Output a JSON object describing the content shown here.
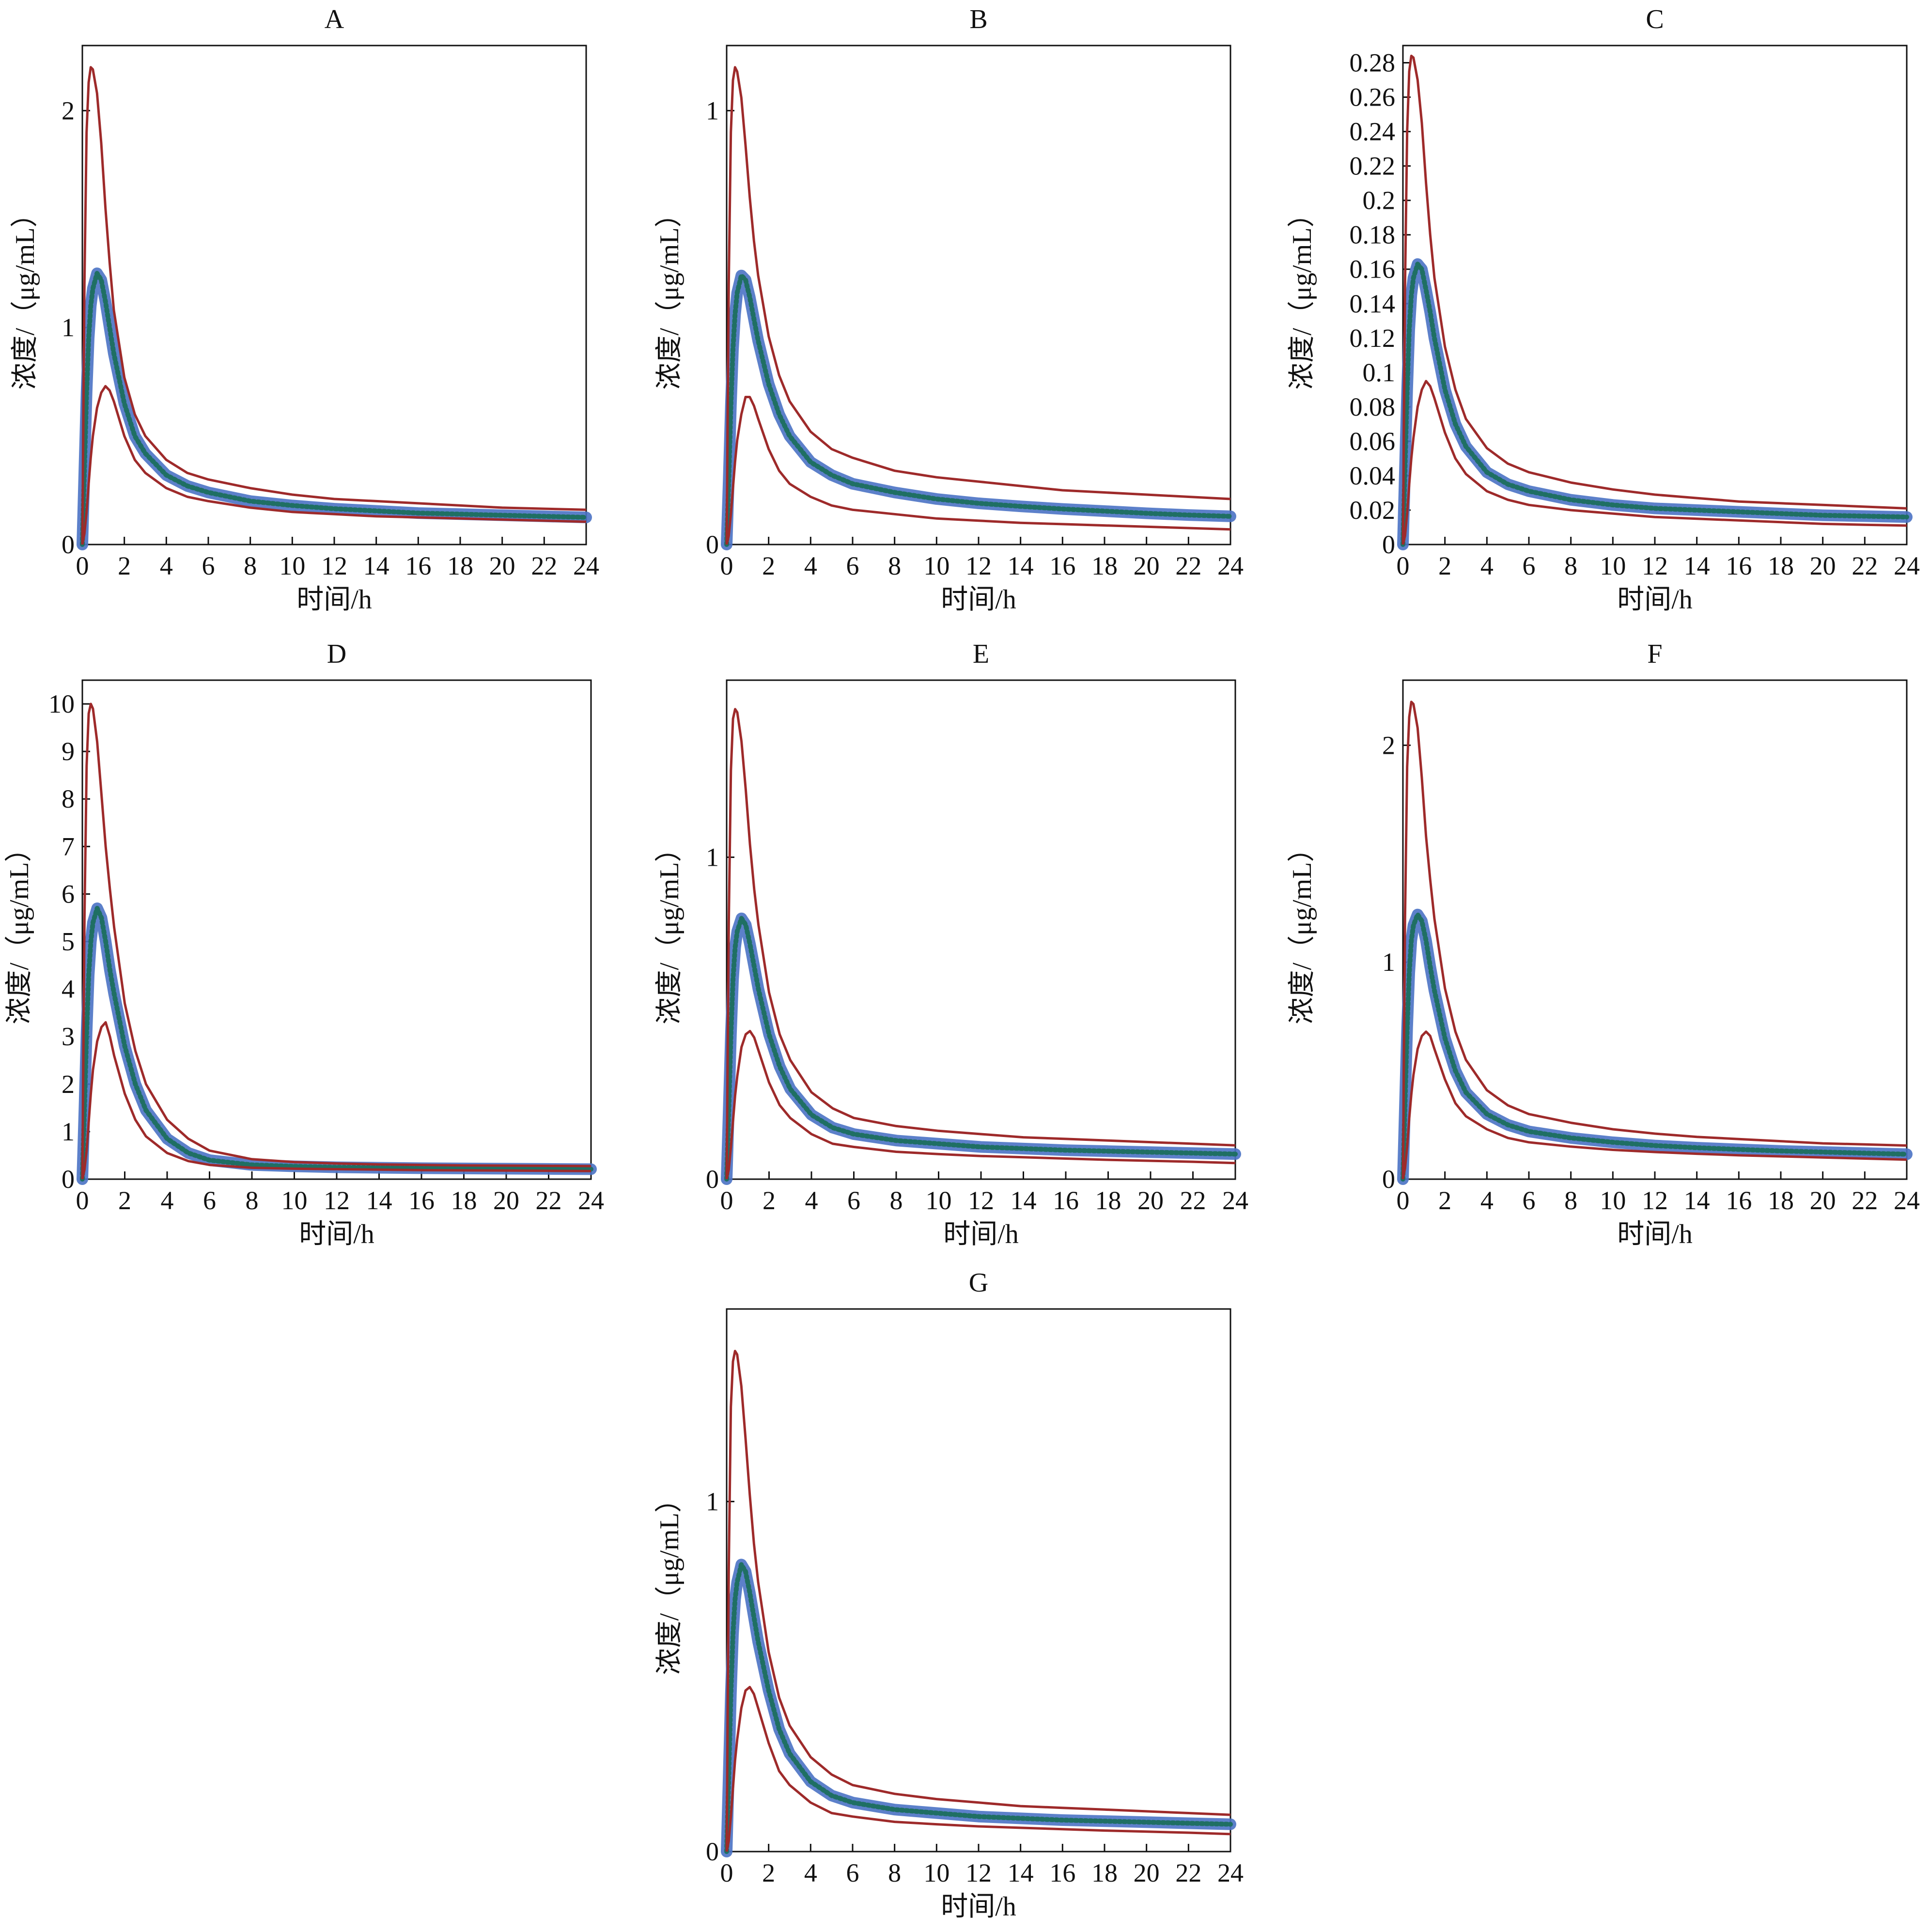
{
  "colors": {
    "bounds": "#9e2a2a",
    "band": "#4a72c4",
    "median": "#1f6f63",
    "axes": "#111111"
  },
  "chart_data": [
    {
      "type": "line",
      "title": "A",
      "xlabel": "时间/h",
      "ylabel": "浓度/（μg/mL）",
      "xlim": [
        0,
        24
      ],
      "ylim": [
        0,
        2.3
      ],
      "xticks": [
        "0",
        "2",
        "4",
        "6",
        "8",
        "10",
        "12",
        "14",
        "16",
        "18",
        "20",
        "22",
        "24"
      ],
      "yticks": [
        "0",
        "1",
        "2"
      ],
      "yticks_values": [
        0,
        1,
        2
      ],
      "x": [
        0,
        0.1,
        0.2,
        0.3,
        0.4,
        0.5,
        0.7,
        0.9,
        1.1,
        1.3,
        1.5,
        2,
        2.5,
        3,
        4,
        5,
        6,
        8,
        10,
        12,
        14,
        16,
        18,
        20,
        22,
        24
      ],
      "series": [
        {
          "role": "upper",
          "values": [
            0,
            1.2,
            1.9,
            2.13,
            2.2,
            2.19,
            2.08,
            1.85,
            1.55,
            1.3,
            1.08,
            0.77,
            0.6,
            0.5,
            0.39,
            0.33,
            0.3,
            0.26,
            0.23,
            0.21,
            0.2,
            0.19,
            0.18,
            0.17,
            0.165,
            0.16
          ]
        },
        {
          "role": "median",
          "values": [
            0,
            0.35,
            0.7,
            0.95,
            1.1,
            1.18,
            1.25,
            1.22,
            1.12,
            1.0,
            0.88,
            0.65,
            0.5,
            0.42,
            0.32,
            0.27,
            0.24,
            0.2,
            0.18,
            0.165,
            0.155,
            0.145,
            0.14,
            0.135,
            0.13,
            0.125
          ]
        },
        {
          "role": "lower",
          "values": [
            0,
            0.05,
            0.15,
            0.28,
            0.4,
            0.5,
            0.63,
            0.7,
            0.73,
            0.71,
            0.66,
            0.5,
            0.39,
            0.33,
            0.26,
            0.22,
            0.2,
            0.17,
            0.15,
            0.14,
            0.13,
            0.125,
            0.12,
            0.115,
            0.11,
            0.105
          ]
        }
      ]
    },
    {
      "type": "line",
      "title": "B",
      "xlabel": "时间/h",
      "ylabel": "浓度/（μg/mL）",
      "xlim": [
        0,
        24
      ],
      "ylim": [
        0,
        1.15
      ],
      "xticks": [
        "0",
        "2",
        "4",
        "6",
        "8",
        "10",
        "12",
        "14",
        "16",
        "18",
        "20",
        "22",
        "24"
      ],
      "yticks": [
        "0",
        "1"
      ],
      "yticks_values": [
        0,
        1
      ],
      "x": [
        0,
        0.1,
        0.2,
        0.3,
        0.4,
        0.5,
        0.7,
        0.9,
        1.1,
        1.3,
        1.5,
        2,
        2.5,
        3,
        4,
        5,
        6,
        8,
        10,
        12,
        14,
        16,
        18,
        20,
        22,
        24
      ],
      "series": [
        {
          "role": "upper",
          "values": [
            0,
            0.6,
            0.95,
            1.07,
            1.1,
            1.09,
            1.03,
            0.92,
            0.8,
            0.7,
            0.62,
            0.48,
            0.39,
            0.33,
            0.26,
            0.22,
            0.2,
            0.17,
            0.155,
            0.145,
            0.135,
            0.125,
            0.12,
            0.115,
            0.11,
            0.105
          ]
        },
        {
          "role": "median",
          "values": [
            0,
            0.15,
            0.32,
            0.45,
            0.53,
            0.58,
            0.62,
            0.61,
            0.57,
            0.52,
            0.47,
            0.37,
            0.3,
            0.25,
            0.19,
            0.16,
            0.14,
            0.12,
            0.105,
            0.095,
            0.088,
            0.082,
            0.077,
            0.072,
            0.068,
            0.065
          ]
        },
        {
          "role": "lower",
          "values": [
            0,
            0.02,
            0.07,
            0.13,
            0.19,
            0.24,
            0.3,
            0.34,
            0.34,
            0.32,
            0.29,
            0.22,
            0.17,
            0.14,
            0.11,
            0.09,
            0.08,
            0.07,
            0.06,
            0.055,
            0.05,
            0.047,
            0.044,
            0.041,
            0.038,
            0.035
          ]
        }
      ]
    },
    {
      "type": "line",
      "title": "C",
      "xlabel": "时间/h",
      "ylabel": "浓度/（μg/mL）",
      "xlim": [
        0,
        24
      ],
      "ylim": [
        0,
        0.29
      ],
      "xticks": [
        "0",
        "2",
        "4",
        "6",
        "8",
        "10",
        "12",
        "14",
        "16",
        "18",
        "20",
        "22",
        "24"
      ],
      "yticks": [
        "0",
        "0.02",
        "0.04",
        "0.06",
        "0.08",
        "0.1",
        "0.12",
        "0.14",
        "0.16",
        "0.18",
        "0.2",
        "0.22",
        "0.24",
        "0.26",
        "0.28"
      ],
      "yticks_values": [
        0,
        0.02,
        0.04,
        0.06,
        0.08,
        0.1,
        0.12,
        0.14,
        0.16,
        0.18,
        0.2,
        0.22,
        0.24,
        0.26,
        0.28
      ],
      "x": [
        0,
        0.1,
        0.2,
        0.3,
        0.4,
        0.5,
        0.7,
        0.9,
        1.1,
        1.3,
        1.5,
        2,
        2.5,
        3,
        4,
        5,
        6,
        8,
        10,
        12,
        14,
        16,
        18,
        20,
        22,
        24
      ],
      "series": [
        {
          "role": "upper",
          "values": [
            0,
            0.15,
            0.24,
            0.275,
            0.284,
            0.283,
            0.27,
            0.245,
            0.21,
            0.18,
            0.155,
            0.115,
            0.09,
            0.073,
            0.056,
            0.047,
            0.042,
            0.036,
            0.032,
            0.029,
            0.027,
            0.025,
            0.024,
            0.023,
            0.022,
            0.021
          ]
        },
        {
          "role": "median",
          "values": [
            0,
            0.045,
            0.09,
            0.125,
            0.145,
            0.155,
            0.163,
            0.16,
            0.148,
            0.135,
            0.12,
            0.09,
            0.07,
            0.057,
            0.042,
            0.035,
            0.031,
            0.026,
            0.023,
            0.021,
            0.02,
            0.019,
            0.018,
            0.017,
            0.0165,
            0.016
          ]
        },
        {
          "role": "lower",
          "values": [
            0,
            0.005,
            0.018,
            0.035,
            0.05,
            0.062,
            0.08,
            0.09,
            0.095,
            0.092,
            0.085,
            0.065,
            0.05,
            0.041,
            0.031,
            0.026,
            0.023,
            0.02,
            0.018,
            0.016,
            0.015,
            0.014,
            0.013,
            0.012,
            0.0115,
            0.011
          ]
        }
      ]
    },
    {
      "type": "line",
      "title": "D",
      "xlabel": "时间/h",
      "ylabel": "浓度/（μg/mL）",
      "xlim": [
        0,
        24
      ],
      "ylim": [
        0,
        10.5
      ],
      "xticks": [
        "0",
        "2",
        "4",
        "6",
        "8",
        "10",
        "12",
        "14",
        "16",
        "18",
        "20",
        "22",
        "24"
      ],
      "yticks": [
        "0",
        "1",
        "2",
        "3",
        "4",
        "5",
        "6",
        "7",
        "8",
        "9",
        "10"
      ],
      "yticks_values": [
        0,
        1,
        2,
        3,
        4,
        5,
        6,
        7,
        8,
        9,
        10
      ],
      "x": [
        0,
        0.1,
        0.2,
        0.3,
        0.4,
        0.5,
        0.7,
        0.9,
        1.1,
        1.3,
        1.5,
        2,
        2.5,
        3,
        4,
        5,
        6,
        8,
        10,
        12,
        14,
        16,
        18,
        20,
        22,
        24
      ],
      "series": [
        {
          "role": "upper",
          "values": [
            0,
            5.5,
            8.7,
            9.8,
            10.0,
            9.9,
            9.2,
            8.1,
            7.0,
            6.1,
            5.3,
            3.7,
            2.7,
            2.0,
            1.25,
            0.85,
            0.6,
            0.42,
            0.36,
            0.33,
            0.31,
            0.3,
            0.29,
            0.285,
            0.28,
            0.275
          ]
        },
        {
          "role": "median",
          "values": [
            0,
            1.5,
            3.1,
            4.3,
            5.0,
            5.4,
            5.7,
            5.5,
            5.0,
            4.4,
            3.9,
            2.8,
            2.0,
            1.45,
            0.85,
            0.55,
            0.4,
            0.3,
            0.27,
            0.25,
            0.24,
            0.23,
            0.225,
            0.22,
            0.215,
            0.21
          ]
        },
        {
          "role": "lower",
          "values": [
            0,
            0.2,
            0.6,
            1.2,
            1.8,
            2.3,
            2.9,
            3.2,
            3.3,
            3.0,
            2.6,
            1.8,
            1.25,
            0.9,
            0.55,
            0.38,
            0.3,
            0.24,
            0.22,
            0.21,
            0.2,
            0.19,
            0.185,
            0.18,
            0.175,
            0.17
          ]
        }
      ]
    },
    {
      "type": "line",
      "title": "E",
      "xlabel": "时间/h",
      "ylabel": "浓度/（μg/mL）",
      "xlim": [
        0,
        24
      ],
      "ylim": [
        0,
        1.55
      ],
      "xticks": [
        "0",
        "2",
        "4",
        "6",
        "8",
        "10",
        "12",
        "14",
        "16",
        "18",
        "20",
        "22",
        "24"
      ],
      "yticks": [
        "0",
        "1"
      ],
      "yticks_values": [
        0,
        1
      ],
      "x": [
        0,
        0.1,
        0.2,
        0.3,
        0.4,
        0.5,
        0.7,
        0.9,
        1.1,
        1.3,
        1.5,
        2,
        2.5,
        3,
        4,
        5,
        6,
        8,
        10,
        12,
        14,
        16,
        18,
        20,
        22,
        24
      ],
      "series": [
        {
          "role": "upper",
          "values": [
            0,
            0.8,
            1.27,
            1.43,
            1.46,
            1.45,
            1.36,
            1.21,
            1.04,
            0.9,
            0.79,
            0.58,
            0.45,
            0.37,
            0.27,
            0.22,
            0.19,
            0.165,
            0.15,
            0.14,
            0.13,
            0.125,
            0.12,
            0.115,
            0.11,
            0.105
          ]
        },
        {
          "role": "median",
          "values": [
            0,
            0.22,
            0.45,
            0.62,
            0.72,
            0.77,
            0.81,
            0.79,
            0.73,
            0.66,
            0.59,
            0.45,
            0.35,
            0.28,
            0.2,
            0.16,
            0.14,
            0.12,
            0.11,
            0.1,
            0.095,
            0.09,
            0.087,
            0.084,
            0.081,
            0.078
          ]
        },
        {
          "role": "lower",
          "values": [
            0,
            0.03,
            0.1,
            0.18,
            0.26,
            0.32,
            0.41,
            0.45,
            0.46,
            0.44,
            0.4,
            0.3,
            0.23,
            0.19,
            0.14,
            0.11,
            0.1,
            0.085,
            0.078,
            0.072,
            0.068,
            0.064,
            0.06,
            0.057,
            0.054,
            0.05
          ]
        }
      ]
    },
    {
      "type": "line",
      "title": "F",
      "xlabel": "时间/h",
      "ylabel": "浓度/（μg/mL）",
      "xlim": [
        0,
        24
      ],
      "ylim": [
        0,
        2.3
      ],
      "xticks": [
        "0",
        "2",
        "4",
        "6",
        "8",
        "10",
        "12",
        "14",
        "16",
        "18",
        "20",
        "22",
        "24"
      ],
      "yticks": [
        "0",
        "1",
        "2"
      ],
      "yticks_values": [
        0,
        1,
        2
      ],
      "x": [
        0,
        0.1,
        0.2,
        0.3,
        0.4,
        0.5,
        0.7,
        0.9,
        1.1,
        1.3,
        1.5,
        2,
        2.5,
        3,
        4,
        5,
        6,
        8,
        10,
        12,
        14,
        16,
        18,
        20,
        22,
        24
      ],
      "series": [
        {
          "role": "upper",
          "values": [
            0,
            1.2,
            1.9,
            2.13,
            2.2,
            2.19,
            2.08,
            1.85,
            1.58,
            1.38,
            1.2,
            0.88,
            0.68,
            0.55,
            0.41,
            0.34,
            0.3,
            0.26,
            0.23,
            0.21,
            0.195,
            0.185,
            0.175,
            0.165,
            0.16,
            0.155
          ]
        },
        {
          "role": "median",
          "values": [
            0,
            0.35,
            0.7,
            0.95,
            1.1,
            1.17,
            1.22,
            1.19,
            1.1,
            0.98,
            0.87,
            0.65,
            0.5,
            0.4,
            0.3,
            0.25,
            0.22,
            0.19,
            0.17,
            0.155,
            0.145,
            0.137,
            0.13,
            0.125,
            0.12,
            0.115
          ]
        },
        {
          "role": "lower",
          "values": [
            0,
            0.05,
            0.15,
            0.28,
            0.39,
            0.48,
            0.6,
            0.66,
            0.68,
            0.66,
            0.6,
            0.46,
            0.35,
            0.29,
            0.23,
            0.19,
            0.17,
            0.15,
            0.135,
            0.125,
            0.117,
            0.11,
            0.105,
            0.1,
            0.095,
            0.09
          ]
        }
      ]
    },
    {
      "type": "line",
      "title": "G",
      "xlabel": "时间/h",
      "ylabel": "浓度/（μg/mL）",
      "xlim": [
        0,
        24
      ],
      "ylim": [
        0,
        1.55
      ],
      "xticks": [
        "0",
        "2",
        "4",
        "6",
        "8",
        "10",
        "12",
        "14",
        "16",
        "18",
        "20",
        "22",
        "24"
      ],
      "yticks": [
        "0",
        "1"
      ],
      "yticks_values": [
        0,
        1
      ],
      "x": [
        0,
        0.1,
        0.2,
        0.3,
        0.4,
        0.5,
        0.7,
        0.9,
        1.1,
        1.3,
        1.5,
        2,
        2.5,
        3,
        4,
        5,
        6,
        8,
        10,
        12,
        14,
        16,
        18,
        20,
        22,
        24
      ],
      "series": [
        {
          "role": "upper",
          "values": [
            0,
            0.8,
            1.27,
            1.4,
            1.43,
            1.42,
            1.33,
            1.18,
            1.02,
            0.88,
            0.77,
            0.57,
            0.44,
            0.36,
            0.27,
            0.22,
            0.19,
            0.165,
            0.15,
            0.14,
            0.13,
            0.125,
            0.12,
            0.115,
            0.11,
            0.105
          ]
        },
        {
          "role": "median",
          "values": [
            0,
            0.22,
            0.45,
            0.62,
            0.72,
            0.77,
            0.82,
            0.8,
            0.74,
            0.67,
            0.6,
            0.46,
            0.35,
            0.28,
            0.2,
            0.16,
            0.14,
            0.12,
            0.11,
            0.1,
            0.095,
            0.09,
            0.087,
            0.084,
            0.081,
            0.078
          ]
        },
        {
          "role": "lower",
          "values": [
            0,
            0.03,
            0.1,
            0.18,
            0.26,
            0.32,
            0.41,
            0.46,
            0.47,
            0.45,
            0.41,
            0.31,
            0.23,
            0.19,
            0.14,
            0.11,
            0.1,
            0.085,
            0.078,
            0.072,
            0.068,
            0.064,
            0.06,
            0.057,
            0.054,
            0.05
          ]
        }
      ]
    }
  ]
}
